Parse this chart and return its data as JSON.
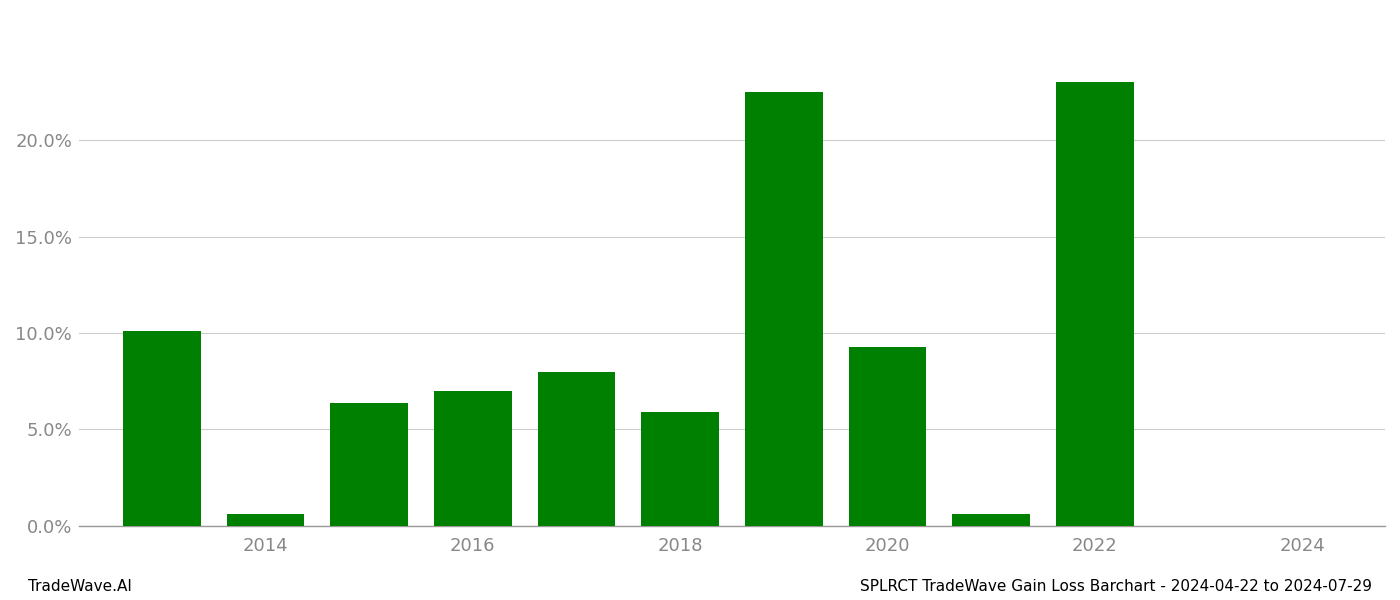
{
  "years": [
    2013,
    2014,
    2015,
    2016,
    2017,
    2018,
    2019,
    2020,
    2021,
    2022,
    2023
  ],
  "values": [
    0.1011,
    0.006,
    0.064,
    0.07,
    0.08,
    0.059,
    0.225,
    0.093,
    0.006,
    0.23,
    0.0
  ],
  "bar_color": "#008000",
  "background_color": "#ffffff",
  "grid_color": "#cccccc",
  "axis_color": "#999999",
  "text_color": "#888888",
  "footer_left": "TradeWave.AI",
  "footer_right": "SPLRCT TradeWave Gain Loss Barchart - 2024-04-22 to 2024-07-29",
  "ytick_labels": [
    "0.0%",
    "5.0%",
    "10.0%",
    "15.0%",
    "20.0%"
  ],
  "ytick_values": [
    0.0,
    0.05,
    0.1,
    0.15,
    0.2
  ],
  "ylim": [
    0,
    0.265
  ],
  "xlim": [
    2012.2,
    2024.8
  ],
  "xtick_positions": [
    2014,
    2016,
    2018,
    2020,
    2022,
    2024
  ],
  "bar_width": 0.75,
  "footer_fontsize": 11,
  "tick_fontsize": 13
}
